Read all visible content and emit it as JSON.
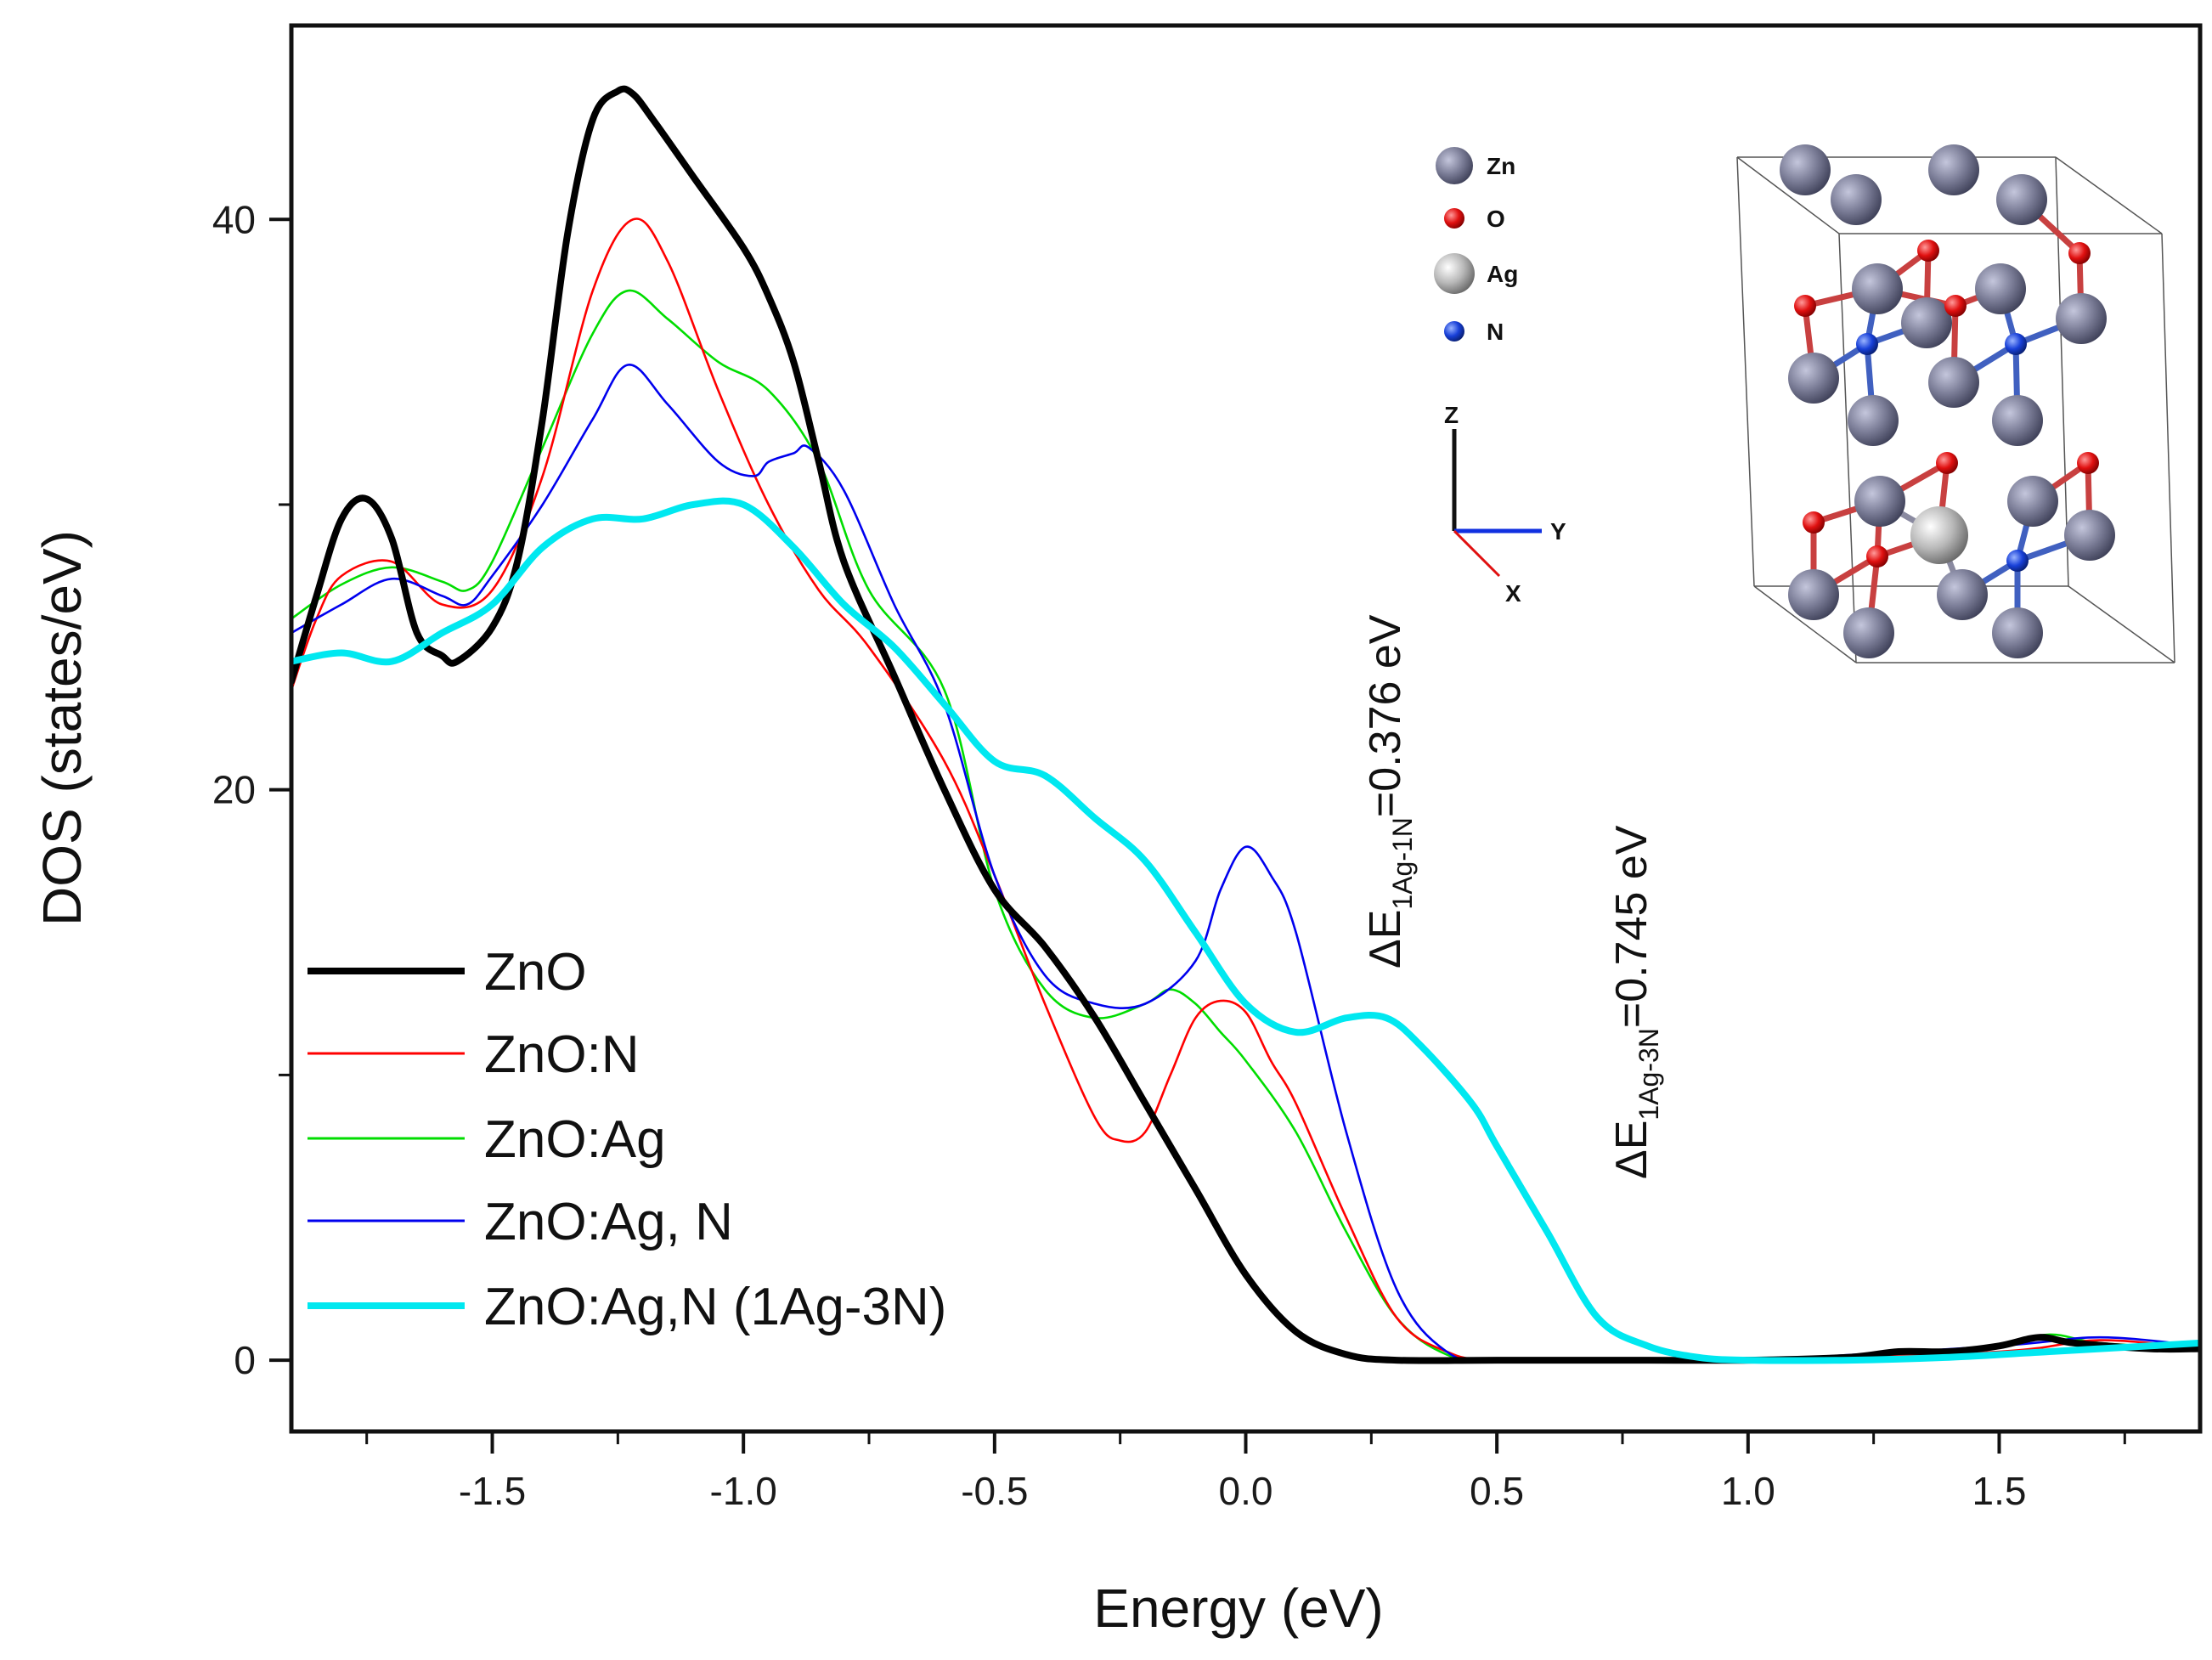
{
  "chart_data": {
    "type": "line",
    "title": "",
    "xlabel": "Energy (eV)",
    "ylabel": "DOS (states/eV)",
    "xlim": [
      -1.9,
      1.9
    ],
    "ylim": [
      -2.5,
      46.8
    ],
    "x_ticks": [
      -1.5,
      -1.0,
      -0.5,
      0.0,
      0.5,
      1.0,
      1.5
    ],
    "x_tick_labels": [
      "-1.5",
      "-1.0",
      "-0.5",
      "0.0",
      "0.5",
      "1.0",
      "1.5"
    ],
    "y_ticks": [
      0,
      20,
      40
    ],
    "y_tick_labels": [
      "0",
      "20",
      "40"
    ],
    "legend_position": "lower-left",
    "series": [
      {
        "name": "ZnO",
        "color": "#000000",
        "style": "thick",
        "x": [
          -1.9,
          -1.85,
          -1.8,
          -1.75,
          -1.7,
          -1.65,
          -1.6,
          -1.57,
          -1.5,
          -1.45,
          -1.4,
          -1.35,
          -1.3,
          -1.25,
          -1.22,
          -1.18,
          -1.1,
          -1.0,
          -0.95,
          -0.9,
          -0.85,
          -0.8,
          -0.7,
          -0.6,
          -0.5,
          -0.4,
          -0.3,
          -0.2,
          -0.1,
          0.0,
          0.1,
          0.2,
          0.3,
          0.5,
          0.8,
          1.0,
          1.2,
          1.3,
          1.4,
          1.5,
          1.58,
          1.65,
          1.8,
          1.9
        ],
        "y": [
          23.8,
          26.8,
          29.5,
          30.2,
          28.8,
          25.5,
          24.7,
          24.5,
          25.7,
          28.0,
          33.0,
          39.5,
          43.5,
          44.5,
          44.4,
          43.5,
          41.5,
          39.0,
          37.3,
          35.0,
          31.5,
          28.0,
          24.0,
          20.0,
          16.5,
          14.5,
          12.0,
          9.0,
          6.0,
          3.0,
          1.0,
          0.2,
          0.0,
          0.0,
          0.0,
          0.0,
          0.1,
          0.3,
          0.3,
          0.5,
          0.8,
          0.6,
          0.4,
          0.4
        ]
      },
      {
        "name": "ZnO:N",
        "color": "#ff0000",
        "style": "thin",
        "x": [
          -1.9,
          -1.85,
          -1.8,
          -1.7,
          -1.6,
          -1.5,
          -1.4,
          -1.3,
          -1.22,
          -1.15,
          -1.05,
          -0.95,
          -0.85,
          -0.75,
          -0.6,
          -0.5,
          -0.4,
          -0.3,
          -0.25,
          -0.2,
          -0.15,
          -0.1,
          -0.05,
          0.0,
          0.05,
          0.1,
          0.2,
          0.3,
          0.4,
          0.5,
          0.8,
          1.0,
          1.5,
          1.7,
          1.9
        ],
        "y": [
          23.5,
          26.0,
          27.5,
          28.0,
          26.5,
          27.0,
          31.0,
          37.5,
          40.0,
          38.5,
          34.0,
          30.0,
          27.0,
          25.0,
          21.0,
          17.0,
          12.5,
          8.5,
          7.7,
          8.0,
          10.0,
          12.0,
          12.6,
          12.2,
          10.5,
          9.0,
          5.0,
          1.5,
          0.3,
          0.0,
          0.0,
          0.0,
          0.3,
          0.7,
          0.4
        ]
      },
      {
        "name": "ZnO:Ag",
        "color": "#00dd00",
        "style": "thin",
        "x": [
          -1.9,
          -1.8,
          -1.7,
          -1.6,
          -1.55,
          -1.5,
          -1.4,
          -1.3,
          -1.23,
          -1.15,
          -1.05,
          -0.95,
          -0.85,
          -0.75,
          -0.6,
          -0.5,
          -0.4,
          -0.3,
          -0.2,
          -0.15,
          -0.1,
          -0.05,
          0.0,
          0.1,
          0.2,
          0.3,
          0.4,
          0.5,
          0.8,
          1.0,
          1.3,
          1.5,
          1.6,
          1.7,
          1.9
        ],
        "y": [
          26.0,
          27.2,
          27.8,
          27.3,
          27.0,
          28.0,
          32.0,
          36.0,
          37.5,
          36.5,
          35.0,
          34.0,
          31.5,
          27.0,
          23.5,
          16.5,
          13.0,
          12.0,
          12.5,
          13.0,
          12.5,
          11.5,
          10.5,
          8.0,
          4.5,
          1.5,
          0.2,
          0.0,
          0.0,
          0.0,
          0.2,
          0.5,
          0.9,
          0.6,
          0.4
        ]
      },
      {
        "name": "ZnO:Ag, N",
        "color": "#0000ee",
        "style": "thin",
        "x": [
          -1.9,
          -1.8,
          -1.7,
          -1.6,
          -1.55,
          -1.5,
          -1.4,
          -1.3,
          -1.23,
          -1.15,
          -1.05,
          -0.98,
          -0.95,
          -0.9,
          -0.87,
          -0.8,
          -0.7,
          -0.6,
          -0.5,
          -0.4,
          -0.3,
          -0.2,
          -0.1,
          -0.05,
          0.0,
          0.05,
          0.1,
          0.2,
          0.3,
          0.4,
          0.5,
          0.8,
          1.0,
          1.5,
          1.7,
          1.9
        ],
        "y": [
          25.5,
          26.5,
          27.4,
          26.8,
          26.5,
          27.5,
          30.0,
          33.0,
          34.9,
          33.5,
          31.5,
          31.0,
          31.5,
          31.8,
          32.0,
          30.5,
          26.5,
          23.0,
          17.0,
          13.5,
          12.5,
          12.5,
          14.0,
          16.5,
          18.0,
          17.0,
          15.0,
          8.0,
          2.5,
          0.3,
          0.0,
          0.0,
          0.0,
          0.5,
          0.8,
          0.5
        ]
      },
      {
        "name": "ZnO:Ag,N (1Ag-3N)",
        "color": "#00e8f0",
        "style": "thick",
        "x": [
          -1.9,
          -1.8,
          -1.7,
          -1.6,
          -1.5,
          -1.4,
          -1.3,
          -1.2,
          -1.1,
          -1.0,
          -0.9,
          -0.8,
          -0.7,
          -0.6,
          -0.5,
          -0.4,
          -0.3,
          -0.2,
          -0.1,
          0.0,
          0.1,
          0.2,
          0.28,
          0.35,
          0.45,
          0.5,
          0.6,
          0.7,
          0.8,
          0.9,
          1.0,
          1.2,
          1.4,
          1.6,
          1.8,
          1.9
        ],
        "y": [
          24.5,
          24.8,
          24.5,
          25.5,
          26.5,
          28.5,
          29.5,
          29.5,
          30.0,
          30.0,
          28.5,
          26.5,
          25.0,
          23.0,
          21.0,
          20.5,
          19.0,
          17.5,
          15.0,
          12.5,
          11.5,
          12.0,
          12.0,
          11.0,
          9.0,
          7.5,
          4.5,
          1.5,
          0.5,
          0.1,
          0.0,
          0.0,
          0.1,
          0.3,
          0.5,
          0.6
        ]
      }
    ],
    "annotations": [
      {
        "id": "de1",
        "prefix": "ΔE",
        "sub": "1Ag-1N",
        "suffix": "=0.376 eV"
      },
      {
        "id": "de2",
        "prefix": "ΔE",
        "sub": "1Ag-3N",
        "suffix": "=0.745 eV"
      }
    ],
    "inset": {
      "species": [
        {
          "label": "Zn",
          "color": "#7a7c96"
        },
        {
          "label": "O",
          "color": "#e01010"
        },
        {
          "label": "Ag",
          "color": "#b8b8b8"
        },
        {
          "label": "N",
          "color": "#1840d8"
        }
      ],
      "axes": [
        "Z",
        "Y",
        "X"
      ]
    }
  }
}
